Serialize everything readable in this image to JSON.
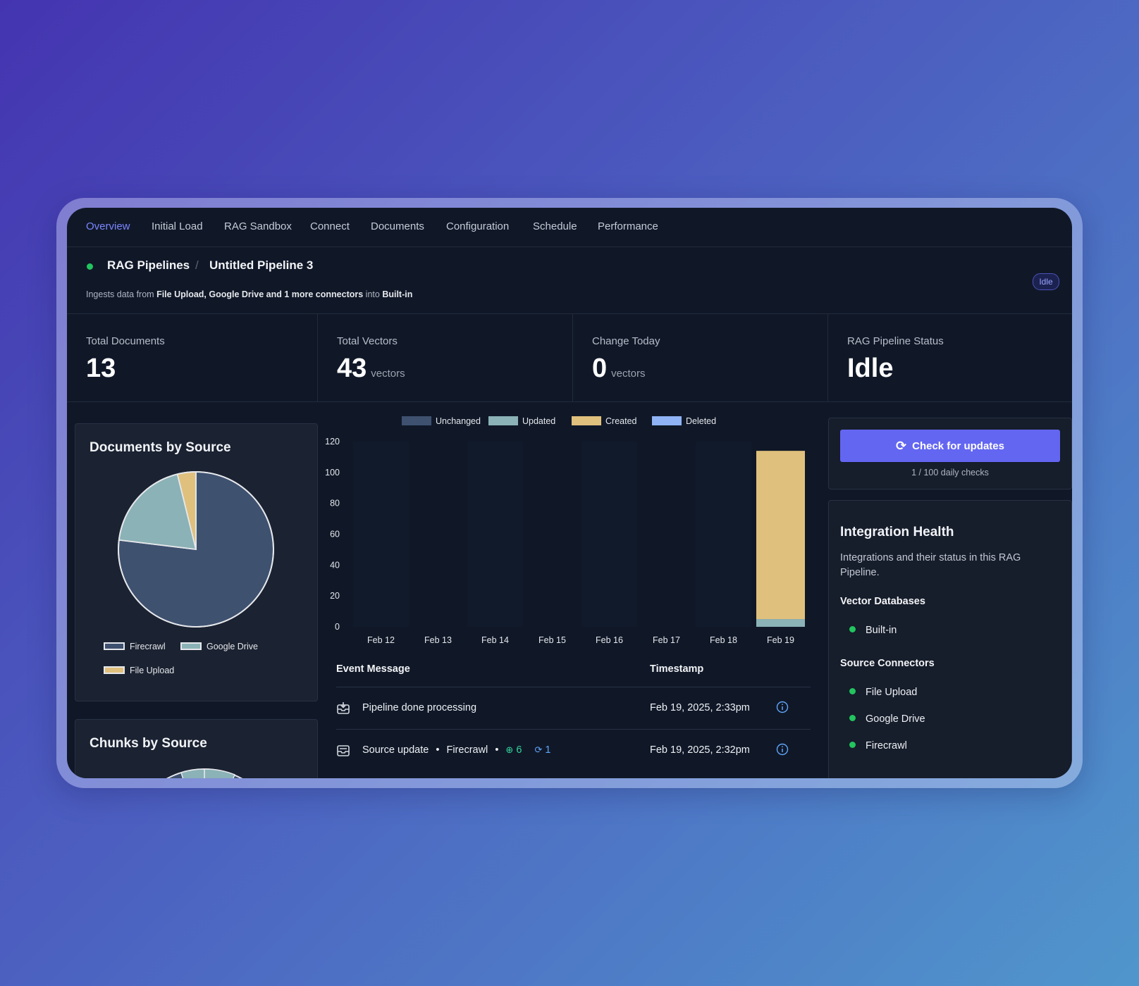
{
  "tabs": [
    "Overview",
    "Initial Load",
    "RAG Sandbox",
    "Connect",
    "Documents",
    "Configuration",
    "Schedule",
    "Performance"
  ],
  "header": {
    "root": "RAG Pipelines",
    "separator": "/",
    "pipeline": "Untitled Pipeline 3",
    "sub_prefix": "Ingests data from",
    "sub_sources": "File Upload, Google Drive and 1 more connectors",
    "sub_into": "into",
    "sub_target": "Built-in",
    "status_badge": "Idle"
  },
  "stats": [
    {
      "label": "Total Documents",
      "value": "13",
      "unit": ""
    },
    {
      "label": "Total Vectors",
      "value": "43",
      "unit": "vectors"
    },
    {
      "label": "Change Today",
      "value": "0",
      "unit": "vectors"
    },
    {
      "label": "RAG Pipeline Status",
      "value": "Idle",
      "unit": ""
    }
  ],
  "docs_by_source": {
    "title": "Documents by Source",
    "legend": [
      "Firecrawl",
      "Google Drive",
      "File Upload"
    ]
  },
  "chunks_by_source": {
    "title": "Chunks by Source"
  },
  "chart_data": [
    {
      "type": "pie",
      "title": "Documents by Source",
      "labels": [
        "Firecrawl",
        "Google Drive",
        "File Upload"
      ],
      "values": [
        10,
        2.5,
        0.5
      ],
      "colors": [
        "#3e516f",
        "#8bb2b6",
        "#e0c07d"
      ]
    },
    {
      "type": "bar",
      "stacked": true,
      "categories": [
        "Feb 12",
        "Feb 13",
        "Feb 14",
        "Feb 15",
        "Feb 16",
        "Feb 17",
        "Feb 18",
        "Feb 19"
      ],
      "series": [
        {
          "name": "Unchanged",
          "color": "#3e516f",
          "values": [
            0,
            0,
            0,
            0,
            0,
            0,
            0,
            0
          ]
        },
        {
          "name": "Updated",
          "color": "#8bb2b6",
          "values": [
            0,
            0,
            0,
            0,
            0,
            0,
            0,
            5
          ]
        },
        {
          "name": "Created",
          "color": "#e0c07d",
          "values": [
            0,
            0,
            0,
            0,
            0,
            0,
            0,
            109
          ]
        },
        {
          "name": "Deleted",
          "color": "#8fb3f5",
          "values": [
            0,
            0,
            0,
            0,
            0,
            0,
            0,
            0
          ]
        }
      ],
      "yticks": [
        0,
        20,
        40,
        60,
        80,
        100,
        120
      ],
      "ylim": [
        0,
        120
      ],
      "legend": "top"
    }
  ],
  "events": {
    "col_message": "Event Message",
    "col_timestamp": "Timestamp",
    "rows": [
      {
        "message": "Pipeline done processing",
        "timestamp": "Feb 19, 2025, 2:33pm"
      },
      {
        "message": "Source update",
        "source": "Firecrawl",
        "created": "6",
        "updated": "1",
        "timestamp": "Feb 19, 2025, 2:32pm"
      }
    ]
  },
  "updates": {
    "button": "Check for updates",
    "checks": "1 / 100 daily checks"
  },
  "integration_health": {
    "title": "Integration Health",
    "description": "Integrations and their status in this RAG Pipeline.",
    "vector_title": "Vector Databases",
    "vector_items": [
      "Built-in"
    ],
    "source_title": "Source Connectors",
    "source_items": [
      "File Upload",
      "Google Drive",
      "Firecrawl"
    ]
  }
}
